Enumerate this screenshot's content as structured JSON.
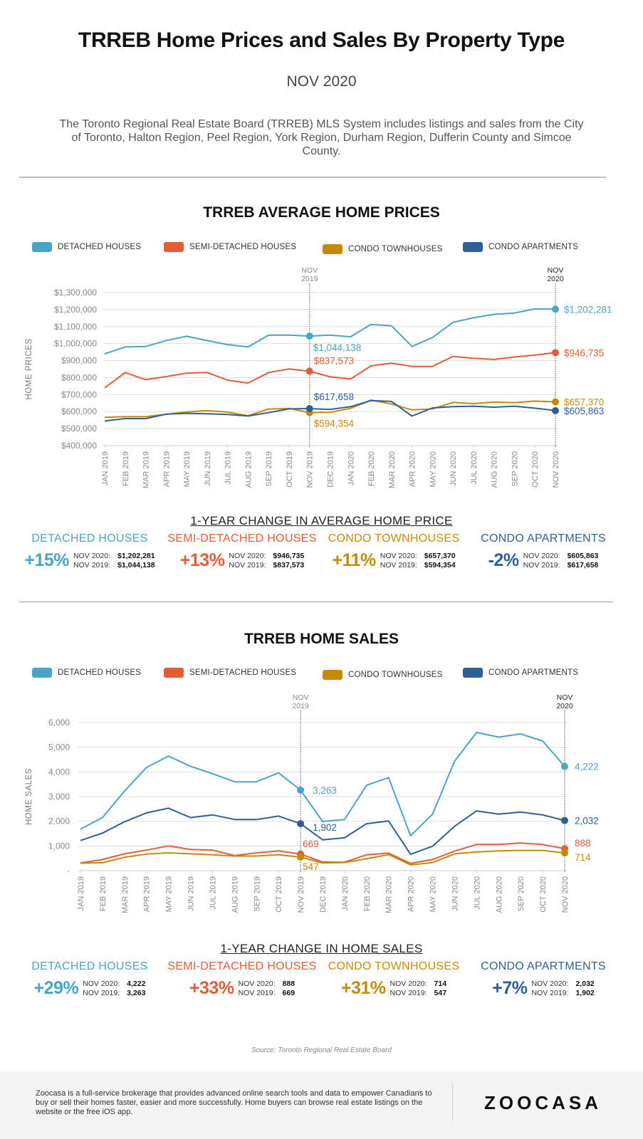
{
  "header": {
    "title": "TRREB Home Prices and Sales By Property Type",
    "subtitle": "NOV 2020",
    "intro": "The Toronto Regional Real Estate Board (TRREB) MLS System includes listings and sales from the City of Toronto, Halton Region, Peel Region, York Region, Durham Region, Dufferin County and Simcoe County."
  },
  "colors": {
    "detached": "#4aa3c8",
    "semi": "#e25c37",
    "townhouse": "#c68a0b",
    "apartment": "#2f5f98",
    "grid": "#dddddd",
    "axis_text": "#888888"
  },
  "legend": [
    {
      "key": "detached",
      "label": "DETACHED HOUSES"
    },
    {
      "key": "semi",
      "label": "SEMI-DETACHED HOUSES"
    },
    {
      "key": "townhouse",
      "label": "CONDO TOWNHOUSES"
    },
    {
      "key": "apartment",
      "label": "CONDO APARTMENTS"
    }
  ],
  "chart_data": [
    {
      "type": "line",
      "title": "TRREB AVERAGE HOME PRICES",
      "xlabel": "",
      "ylabel": "HOME PRICES",
      "ylim": [
        400000,
        1300000
      ],
      "yticks": [
        400000,
        500000,
        600000,
        700000,
        800000,
        900000,
        1000000,
        1100000,
        1200000,
        1300000
      ],
      "ytick_labels": [
        "$400,000",
        "$500,000",
        "$600,000",
        "$700,000",
        "$800,000",
        "$900,000",
        "$1,000,000",
        "$1,100,000",
        "$1,200,000",
        "$1,300,000"
      ],
      "grid": true,
      "legend": "top",
      "categories": [
        "JAN 2019",
        "FEB 2019",
        "MAR 2019",
        "APR 2019",
        "MAY 2019",
        "JUN 2019",
        "JUL 2019",
        "AUG 2019",
        "SEP 2019",
        "OCT 2019",
        "NOV 2019",
        "DEC 2019",
        "JAN 2020",
        "FEB 2020",
        "MAR 2020",
        "APR 2020",
        "MAY 2020",
        "JUN 2020",
        "JUL 2020",
        "AUG 2020",
        "SEP 2020",
        "OCT 2020",
        "NOV 2020"
      ],
      "markers": [
        {
          "label_line1": "NOV",
          "label_line2": "2019",
          "index": 10
        },
        {
          "label_line1": "NOV",
          "label_line2": "2020",
          "index": 22
        }
      ],
      "series": [
        {
          "name": "DETACHED HOUSES",
          "key": "detached",
          "values": [
            940000,
            980000,
            983000,
            1018000,
            1043000,
            1018000,
            994000,
            980000,
            1050000,
            1050000,
            1044138,
            1050000,
            1040000,
            1113000,
            1105000,
            983000,
            1036000,
            1125000,
            1152000,
            1172000,
            1180000,
            1204000,
            1202281
          ],
          "annotations": [
            {
              "index": 10,
              "text": "$1,044,138"
            },
            {
              "index": 22,
              "text": "$1,202,281"
            }
          ]
        },
        {
          "name": "SEMI-DETACHED HOUSES",
          "key": "semi",
          "values": [
            740000,
            830000,
            788000,
            806000,
            826000,
            830000,
            785000,
            768000,
            830000,
            851000,
            837573,
            805000,
            792000,
            869000,
            885000,
            866000,
            866000,
            925000,
            914000,
            907000,
            921000,
            933000,
            946735
          ],
          "annotations": [
            {
              "index": 10,
              "text": "$837,573"
            },
            {
              "index": 22,
              "text": "$946,735"
            }
          ]
        },
        {
          "name": "CONDO TOWNHOUSES",
          "key": "townhouse",
          "values": [
            566000,
            571000,
            571000,
            584000,
            598000,
            606000,
            597000,
            576000,
            615000,
            619000,
            594354,
            596000,
            619000,
            668000,
            645000,
            610000,
            616000,
            654000,
            647000,
            656000,
            653000,
            662000,
            657370
          ],
          "annotations": [
            {
              "index": 10,
              "text": "$594,354"
            },
            {
              "index": 22,
              "text": "$657,370"
            }
          ]
        },
        {
          "name": "CONDO APARTMENTS",
          "key": "apartment",
          "values": [
            545000,
            559000,
            559000,
            585000,
            590000,
            587000,
            583000,
            574000,
            594000,
            616000,
            617658,
            613000,
            629000,
            665000,
            660000,
            574000,
            622000,
            629000,
            632000,
            626000,
            632000,
            620000,
            605863
          ],
          "annotations": [
            {
              "index": 10,
              "text": "$617,658"
            },
            {
              "index": 22,
              "text": "$605,863"
            }
          ]
        }
      ]
    },
    {
      "type": "line",
      "title": "TRREB HOME SALES",
      "xlabel": "",
      "ylabel": "HOME SALES",
      "ylim": [
        0,
        6000
      ],
      "yticks": [
        0,
        1000,
        2000,
        3000,
        4000,
        5000,
        6000
      ],
      "ytick_labels": [
        "-",
        "1,000",
        "2,000",
        "3,000",
        "4,000",
        "5,000",
        "6,000"
      ],
      "grid": true,
      "legend": "top",
      "categories": [
        "JAN 2019",
        "FEB 2019",
        "MAR 2019",
        "APR 2019",
        "MAY 2019",
        "JUN 2019",
        "JUL 2019",
        "AUG 2019",
        "SEP 2019",
        "OCT 2019",
        "NOV 2019",
        "DEC 2019",
        "JAN 2020",
        "FEB 2020",
        "MAR 2020",
        "APR 2020",
        "MAY 2020",
        "JUN 2020",
        "JUL 2020",
        "AUG 2020",
        "SEP 2020",
        "OCT 2020",
        "NOV 2020"
      ],
      "markers": [
        {
          "label_line1": "NOV",
          "label_line2": "2019",
          "index": 10
        },
        {
          "label_line1": "NOV",
          "label_line2": "2020",
          "index": 22
        }
      ],
      "series": [
        {
          "name": "DETACHED HOUSES",
          "key": "detached",
          "values": [
            1680,
            2150,
            3220,
            4180,
            4640,
            4230,
            3930,
            3600,
            3600,
            3960,
            3263,
            1990,
            2070,
            3460,
            3770,
            1410,
            2290,
            4440,
            5600,
            5410,
            5540,
            5250,
            4222
          ],
          "annotations": [
            {
              "index": 10,
              "text": "3,263"
            },
            {
              "index": 22,
              "text": "4,222"
            }
          ]
        },
        {
          "name": "SEMI-DETACHED HOUSES",
          "key": "semi",
          "values": [
            310,
            450,
            680,
            830,
            1000,
            860,
            830,
            610,
            720,
            800,
            669,
            350,
            340,
            640,
            710,
            290,
            450,
            790,
            1060,
            1060,
            1120,
            1060,
            888
          ],
          "annotations": [
            {
              "index": 10,
              "text": "669"
            },
            {
              "index": 22,
              "text": "888"
            }
          ]
        },
        {
          "name": "CONDO TOWNHOUSES",
          "key": "townhouse",
          "values": [
            300,
            320,
            540,
            670,
            720,
            680,
            640,
            590,
            590,
            640,
            547,
            310,
            330,
            480,
            650,
            230,
            330,
            680,
            760,
            800,
            820,
            820,
            714
          ],
          "annotations": [
            {
              "index": 10,
              "text": "547"
            },
            {
              "index": 22,
              "text": "714"
            }
          ]
        },
        {
          "name": "CONDO APARTMENTS",
          "key": "apartment",
          "values": [
            1220,
            1520,
            1980,
            2340,
            2530,
            2150,
            2260,
            2070,
            2070,
            2210,
            1902,
            1250,
            1330,
            1900,
            2010,
            660,
            990,
            1800,
            2420,
            2290,
            2370,
            2260,
            2032
          ],
          "annotations": [
            {
              "index": 10,
              "text": "1,902"
            },
            {
              "index": 22,
              "text": "2,032"
            }
          ]
        }
      ]
    }
  ],
  "price_change": {
    "title": "1-YEAR CHANGE IN AVERAGE HOME PRICE",
    "items": [
      {
        "key": "detached",
        "name": "DETACHED HOUSES",
        "pct": "+15%",
        "label_2020": "NOV 2020:",
        "value_2020": "$1,202,281",
        "label_2019": "NOV 2019:",
        "value_2019": "$1,044,138"
      },
      {
        "key": "semi",
        "name": "SEMI-DETACHED HOUSES",
        "pct": "+13%",
        "label_2020": "NOV 2020:",
        "value_2020": "$946,735",
        "label_2019": "NOV 2019:",
        "value_2019": "$837,573"
      },
      {
        "key": "townhouse",
        "name": "CONDO TOWNHOUSES",
        "pct": "+11%",
        "label_2020": "NOV 2020:",
        "value_2020": "$657,370",
        "label_2019": "NOV 2019:",
        "value_2019": "$594,354"
      },
      {
        "key": "apartment",
        "name": "CONDO APARTMENTS",
        "pct": "-2%",
        "label_2020": "NOV 2020:",
        "value_2020": "$605,863",
        "label_2019": "NOV 2019:",
        "value_2019": "$617,658"
      }
    ]
  },
  "sales_change": {
    "title": "1-YEAR CHANGE IN HOME SALES",
    "items": [
      {
        "key": "detached",
        "name": "DETACHED HOUSES",
        "pct": "+29%",
        "label_2020": "NOV 2020:",
        "value_2020": "4,222",
        "label_2019": "NOV 2019:",
        "value_2019": "3,263"
      },
      {
        "key": "semi",
        "name": "SEMI-DETACHED HOUSES",
        "pct": "+33%",
        "label_2020": "NOV 2020:",
        "value_2020": "888",
        "label_2019": "NOV 2019:",
        "value_2019": "669"
      },
      {
        "key": "townhouse",
        "name": "CONDO TOWNHOUSES",
        "pct": "+31%",
        "label_2020": "NOV 2020:",
        "value_2020": "714",
        "label_2019": "NOV 2019:",
        "value_2019": "547"
      },
      {
        "key": "apartment",
        "name": "CONDO APARTMENTS",
        "pct": "+7%",
        "label_2020": "NOV 2020:",
        "value_2020": "2,032",
        "label_2019": "NOV 2019:",
        "value_2019": "1,902"
      }
    ]
  },
  "source": "Source: Toronto Regional Real Estate Board",
  "footer": {
    "text": "Zoocasa is a full-service brokerage that provides advanced online search tools and data to empower Canadians to buy or sell their homes faster, easier and more successfully. Home buyers can browse real estate listings on the website or the free iOS app.",
    "logo": "ZOOCASA"
  }
}
